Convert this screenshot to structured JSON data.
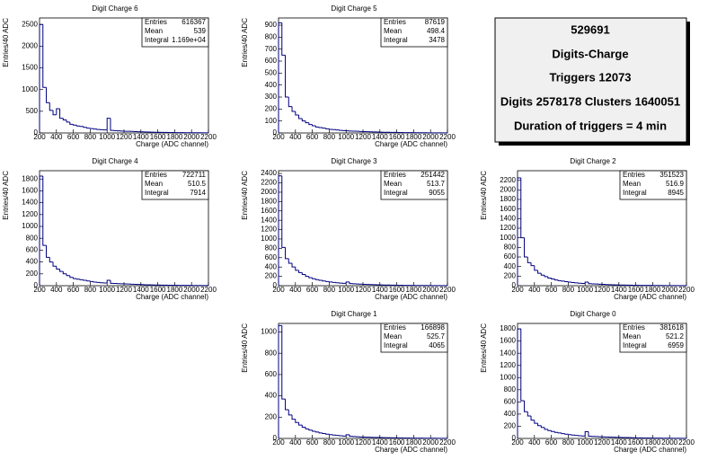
{
  "chart_data": [
    {
      "type": "histogram",
      "title": "Digit Charge 6",
      "x_label": "Charge (ADC channel)",
      "y_label": "Entries/40 ADC",
      "bins": [
        200,
        240,
        280,
        320,
        360,
        400,
        440,
        480,
        520,
        560,
        600,
        640,
        680,
        720,
        760,
        800,
        840,
        880,
        920,
        960,
        1000,
        1040,
        1080,
        1120,
        1160,
        1200,
        1240,
        1280,
        1320,
        1360,
        1400,
        1440,
        1480,
        1520,
        1560,
        1600,
        1640,
        1680,
        1720,
        1760,
        1800,
        1840,
        1880,
        1920,
        1960,
        2000,
        2040,
        2080,
        2120,
        2160,
        2200
      ],
      "counts": [
        2500,
        1050,
        700,
        520,
        420,
        560,
        340,
        300,
        250,
        200,
        180,
        160,
        150,
        130,
        110,
        100,
        90,
        80,
        75,
        70,
        340,
        60,
        55,
        50,
        45,
        40,
        38,
        35,
        30,
        28,
        25,
        22,
        20,
        18,
        16,
        15,
        14,
        12,
        10,
        10,
        9,
        8,
        7,
        6,
        6,
        5,
        5,
        4,
        4,
        3
      ],
      "color": "#000080",
      "xlim": [
        200,
        2200
      ],
      "xticks": [
        200,
        400,
        600,
        800,
        1000,
        1200,
        1400,
        1600,
        1800,
        2000,
        2200
      ],
      "ylim": [
        0,
        2650
      ],
      "yticks": [
        0,
        500,
        1000,
        1500,
        2000,
        2500
      ],
      "stats": [
        {
          "label": "Entries",
          "value": 616367
        },
        {
          "label": "Mean",
          "value": 539
        },
        {
          "label": "Integral",
          "value": "1.169e+04"
        }
      ]
    },
    {
      "type": "histogram",
      "title": "Digit Charge 5",
      "x_label": "Charge (ADC channel)",
      "y_label": "Entries/40 ADC",
      "bins": [
        200,
        240,
        280,
        320,
        360,
        400,
        440,
        480,
        520,
        560,
        600,
        640,
        680,
        720,
        760,
        800,
        840,
        880,
        920,
        960,
        1000,
        1040,
        1080,
        1120,
        1160,
        1200,
        1240,
        1280,
        1320,
        1360,
        1400,
        1440,
        1480,
        1520,
        1560,
        1600,
        1640,
        1680,
        1720,
        1760,
        1800,
        1840,
        1880,
        1920,
        1960,
        2000,
        2040,
        2080,
        2120,
        2160,
        2200
      ],
      "counts": [
        920,
        650,
        300,
        220,
        180,
        150,
        120,
        100,
        85,
        70,
        60,
        50,
        45,
        40,
        35,
        30,
        28,
        25,
        22,
        20,
        18,
        16,
        15,
        14,
        12,
        11,
        10,
        9,
        8,
        8,
        7,
        6,
        6,
        5,
        5,
        4,
        4,
        3,
        3,
        3,
        2,
        2,
        2,
        2,
        1,
        1,
        1,
        1,
        1,
        1
      ],
      "color": "#000080",
      "xlim": [
        200,
        2200
      ],
      "xticks": [
        200,
        400,
        600,
        800,
        1000,
        1200,
        1400,
        1600,
        1800,
        2000,
        2200
      ],
      "ylim": [
        0,
        960
      ],
      "yticks": [
        0,
        100,
        200,
        300,
        400,
        500,
        600,
        700,
        800,
        900
      ],
      "stats": [
        {
          "label": "Entries",
          "value": 87619
        },
        {
          "label": "Mean",
          "value": 498.4
        },
        {
          "label": "Integral",
          "value": 3478
        }
      ]
    },
    {
      "type": "histogram",
      "title": "Digit Charge 4",
      "x_label": "Charge (ADC channel)",
      "y_label": "Entries/40 ADC",
      "bins": [
        200,
        240,
        280,
        320,
        360,
        400,
        440,
        480,
        520,
        560,
        600,
        640,
        680,
        720,
        760,
        800,
        840,
        880,
        920,
        960,
        1000,
        1040,
        1080,
        1120,
        1160,
        1200,
        1240,
        1280,
        1320,
        1360,
        1400,
        1440,
        1480,
        1520,
        1560,
        1600,
        1640,
        1680,
        1720,
        1760,
        1800,
        1840,
        1880,
        1920,
        1960,
        2000,
        2040,
        2080,
        2120,
        2160,
        2200
      ],
      "counts": [
        1850,
        680,
        480,
        400,
        330,
        280,
        240,
        200,
        170,
        140,
        120,
        110,
        100,
        90,
        80,
        70,
        60,
        55,
        50,
        45,
        90,
        40,
        38,
        35,
        32,
        30,
        28,
        25,
        22,
        20,
        18,
        16,
        15,
        14,
        12,
        11,
        10,
        9,
        8,
        8,
        7,
        6,
        6,
        5,
        5,
        4,
        4,
        3,
        3,
        3
      ],
      "color": "#000080",
      "xlim": [
        200,
        2200
      ],
      "xticks": [
        200,
        400,
        600,
        800,
        1000,
        1200,
        1400,
        1600,
        1800,
        2000,
        2200
      ],
      "ylim": [
        0,
        1940
      ],
      "yticks": [
        0,
        200,
        400,
        600,
        800,
        1000,
        1200,
        1400,
        1600,
        1800
      ],
      "stats": [
        {
          "label": "Entries",
          "value": 722711
        },
        {
          "label": "Mean",
          "value": 510.5
        },
        {
          "label": "Integral",
          "value": 7914
        }
      ]
    },
    {
      "type": "histogram",
      "title": "Digit Charge 3",
      "x_label": "Charge (ADC channel)",
      "y_label": "Entries/40 ADC",
      "bins": [
        200,
        240,
        280,
        320,
        360,
        400,
        440,
        480,
        520,
        560,
        600,
        640,
        680,
        720,
        760,
        800,
        840,
        880,
        920,
        960,
        1000,
        1040,
        1080,
        1120,
        1160,
        1200,
        1240,
        1280,
        1320,
        1360,
        1400,
        1440,
        1480,
        1520,
        1560,
        1600,
        1640,
        1680,
        1720,
        1760,
        1800,
        1840,
        1880,
        1920,
        1960,
        2000,
        2040,
        2080,
        2120,
        2160,
        2200
      ],
      "counts": [
        2350,
        820,
        580,
        480,
        400,
        330,
        280,
        240,
        200,
        170,
        150,
        130,
        115,
        100,
        90,
        80,
        70,
        62,
        55,
        50,
        80,
        45,
        40,
        36,
        33,
        30,
        27,
        24,
        21,
        19,
        17,
        15,
        14,
        12,
        11,
        10,
        9,
        8,
        7,
        7,
        6,
        5,
        5,
        4,
        4,
        3,
        3,
        3,
        2,
        2
      ],
      "color": "#000080",
      "xlim": [
        200,
        2200
      ],
      "xticks": [
        200,
        400,
        600,
        800,
        1000,
        1200,
        1400,
        1600,
        1800,
        2000,
        2200
      ],
      "ylim": [
        0,
        2460
      ],
      "yticks": [
        0,
        200,
        400,
        600,
        800,
        1000,
        1200,
        1400,
        1600,
        1800,
        2000,
        2200,
        2400
      ],
      "stats": [
        {
          "label": "Entries",
          "value": 251442
        },
        {
          "label": "Mean",
          "value": 513.7
        },
        {
          "label": "Integral",
          "value": 9055
        }
      ]
    },
    {
      "type": "histogram",
      "title": "Digit Charge 2",
      "x_label": "Charge (ADC channel)",
      "y_label": "Entries/40 ADC",
      "bins": [
        200,
        240,
        280,
        320,
        360,
        400,
        440,
        480,
        520,
        560,
        600,
        640,
        680,
        720,
        760,
        800,
        840,
        880,
        920,
        960,
        1000,
        1040,
        1080,
        1120,
        1160,
        1200,
        1240,
        1280,
        1320,
        1360,
        1400,
        1440,
        1480,
        1520,
        1560,
        1600,
        1640,
        1680,
        1720,
        1760,
        1800,
        1840,
        1880,
        1920,
        1960,
        2000,
        2040,
        2080,
        2120,
        2160,
        2200
      ],
      "counts": [
        2250,
        1000,
        600,
        480,
        420,
        320,
        260,
        220,
        190,
        160,
        140,
        120,
        105,
        95,
        85,
        75,
        65,
        58,
        52,
        46,
        75,
        42,
        38,
        34,
        30,
        27,
        24,
        21,
        19,
        17,
        15,
        14,
        12,
        11,
        10,
        9,
        8,
        7,
        7,
        6,
        5,
        5,
        4,
        4,
        3,
        3,
        3,
        2,
        2,
        2
      ],
      "color": "#000080",
      "xlim": [
        200,
        2200
      ],
      "xticks": [
        200,
        400,
        600,
        800,
        1000,
        1200,
        1400,
        1600,
        1800,
        2000,
        2200
      ],
      "ylim": [
        0,
        2400
      ],
      "yticks": [
        0,
        200,
        400,
        600,
        800,
        1000,
        1200,
        1400,
        1600,
        1800,
        2000,
        2200
      ],
      "stats": [
        {
          "label": "Entries",
          "value": 351523
        },
        {
          "label": "Mean",
          "value": 516.9
        },
        {
          "label": "Integral",
          "value": 8945
        }
      ]
    },
    {
      "type": "histogram",
      "title": "Digit Charge 1",
      "x_label": "Charge (ADC channel)",
      "y_label": "Entries/40 ADC",
      "bins": [
        200,
        240,
        280,
        320,
        360,
        400,
        440,
        480,
        520,
        560,
        600,
        640,
        680,
        720,
        760,
        800,
        840,
        880,
        920,
        960,
        1000,
        1040,
        1080,
        1120,
        1160,
        1200,
        1240,
        1280,
        1320,
        1360,
        1400,
        1440,
        1480,
        1520,
        1560,
        1600,
        1640,
        1680,
        1720,
        1760,
        1800,
        1840,
        1880,
        1920,
        1960,
        2000,
        2040,
        2080,
        2120,
        2160,
        2200
      ],
      "counts": [
        1060,
        370,
        270,
        220,
        180,
        150,
        125,
        105,
        90,
        78,
        68,
        60,
        52,
        46,
        40,
        36,
        32,
        28,
        25,
        22,
        35,
        20,
        18,
        16,
        14,
        13,
        12,
        11,
        10,
        9,
        8,
        7,
        7,
        6,
        6,
        5,
        5,
        4,
        4,
        3,
        3,
        3,
        3,
        2,
        2,
        2,
        2,
        1,
        1,
        1
      ],
      "color": "#000080",
      "xlim": [
        200,
        2200
      ],
      "xticks": [
        200,
        400,
        600,
        800,
        1000,
        1200,
        1400,
        1600,
        1800,
        2000,
        2200
      ],
      "ylim": [
        0,
        1080
      ],
      "yticks": [
        0,
        200,
        400,
        600,
        800,
        1000
      ],
      "stats": [
        {
          "label": "Entries",
          "value": 166898
        },
        {
          "label": "Mean",
          "value": 525.7
        },
        {
          "label": "Integral",
          "value": 4065
        }
      ]
    },
    {
      "type": "histogram",
      "title": "Digit Charge 0",
      "x_label": "Charge (ADC channel)",
      "y_label": "Entries/40 ADC",
      "bins": [
        200,
        240,
        280,
        320,
        360,
        400,
        440,
        480,
        520,
        560,
        600,
        640,
        680,
        720,
        760,
        800,
        840,
        880,
        920,
        960,
        1000,
        1040,
        1080,
        1120,
        1160,
        1200,
        1240,
        1280,
        1320,
        1360,
        1400,
        1440,
        1480,
        1520,
        1560,
        1600,
        1640,
        1680,
        1720,
        1760,
        1800,
        1840,
        1880,
        1920,
        1960,
        2000,
        2040,
        2080,
        2120,
        2160,
        2200
      ],
      "counts": [
        1800,
        620,
        440,
        370,
        300,
        250,
        210,
        180,
        150,
        130,
        115,
        100,
        90,
        80,
        70,
        62,
        56,
        50,
        45,
        40,
        110,
        37,
        34,
        31,
        28,
        26,
        24,
        22,
        20,
        18,
        16,
        15,
        14,
        12,
        11,
        10,
        9,
        8,
        7,
        7,
        6,
        5,
        5,
        4,
        4,
        3,
        3,
        3,
        2,
        2
      ],
      "color": "#000080",
      "xlim": [
        200,
        2200
      ],
      "xticks": [
        200,
        400,
        600,
        800,
        1000,
        1200,
        1400,
        1600,
        1800,
        2000,
        2200
      ],
      "ylim": [
        0,
        1890
      ],
      "yticks": [
        0,
        200,
        400,
        600,
        800,
        1000,
        1200,
        1400,
        1600,
        1800
      ],
      "stats": [
        {
          "label": "Entries",
          "value": 381618
        },
        {
          "label": "Mean",
          "value": 521.2
        },
        {
          "label": "Integral",
          "value": 6959
        }
      ]
    }
  ],
  "info_box": {
    "lines": [
      "529691",
      "Digits-Charge",
      "Triggers 12073",
      "Digits 2578178 Clusters 1640051",
      "Duration of triggers = 4 min"
    ]
  }
}
